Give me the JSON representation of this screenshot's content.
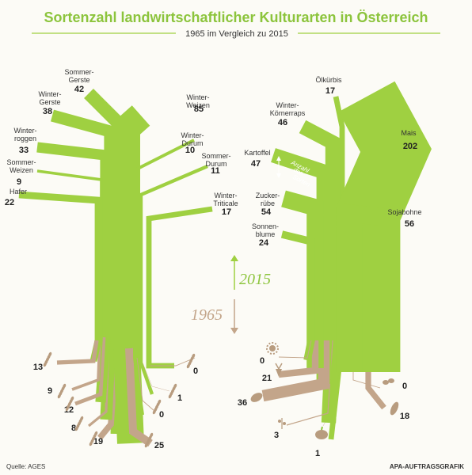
{
  "title": "Sortenzahl landwirtschaftlicher Kulturarten in Österreich",
  "subtitle": "1965 im Vergleich zu 2015",
  "source": "Quelle: AGES",
  "credit": "APA-AUFTRAGSGRAFIK",
  "year_new": "2015",
  "year_old": "1965",
  "legend_label": [
    "Anzahl",
    "der",
    "Sorten"
  ],
  "colors": {
    "green": "#9fd041",
    "brown": "#c3a58a",
    "title": "#8cc43c"
  },
  "chart_data": {
    "type": "bar",
    "groups": [
      {
        "name": "grain",
        "crops": [
          {
            "label": [
              "Sommer-",
              "Gerste"
            ],
            "v2015": 42,
            "v1965": 19,
            "icon": "barley-icon"
          },
          {
            "label": [
              "Winter-",
              "Gerste"
            ],
            "v2015": 38,
            "v1965": 8,
            "icon": "barley-icon"
          },
          {
            "label": [
              "Winter-",
              "roggen"
            ],
            "v2015": 33,
            "v1965": 12,
            "icon": "rye-icon"
          },
          {
            "label": [
              "Sommer-",
              "Weizen"
            ],
            "v2015": 9,
            "v1965": 9,
            "icon": "wheat-icon"
          },
          {
            "label": [
              "Hafer"
            ],
            "v2015": 22,
            "v1965": 13,
            "icon": "oat-icon"
          },
          {
            "label": [
              "Winter-",
              "Weizen"
            ],
            "v2015": 85,
            "v1965": 25,
            "icon": "wheat-icon"
          },
          {
            "label": [
              "Winter-",
              "Durum"
            ],
            "v2015": 10,
            "v1965": 0,
            "icon": "durum-icon"
          },
          {
            "label": [
              "Sommer-",
              "Durum"
            ],
            "v2015": 11,
            "v1965": 1,
            "icon": "durum-icon"
          },
          {
            "label": [
              "Winter-",
              "Triticale"
            ],
            "v2015": 17,
            "v1965": 0,
            "icon": "triticale-icon"
          }
        ]
      },
      {
        "name": "other",
        "crops": [
          {
            "label": [
              "Ölkürbis"
            ],
            "v2015": 17,
            "v1965": 1,
            "icon": "pumpkin-icon"
          },
          {
            "label": [
              "Winter-",
              "Körnerraps"
            ],
            "v2015": 46,
            "v1965": 3,
            "icon": "rapeseed-icon"
          },
          {
            "label": [
              "Kartoffel"
            ],
            "v2015": 47,
            "v1965": 36,
            "icon": "potato-icon"
          },
          {
            "label": [
              "Zucker-",
              "rübe"
            ],
            "v2015": 54,
            "v1965": 21,
            "icon": "sugar-beet-icon"
          },
          {
            "label": [
              "Sonnen-",
              "blume"
            ],
            "v2015": 24,
            "v1965": 0,
            "icon": "sunflower-icon"
          },
          {
            "label": [
              "Mais"
            ],
            "v2015": 202,
            "v1965": 18,
            "icon": "corn-icon"
          },
          {
            "label": [
              "Sojabohne"
            ],
            "v2015": 56,
            "v1965": 0,
            "icon": "soybean-icon"
          }
        ]
      }
    ]
  }
}
